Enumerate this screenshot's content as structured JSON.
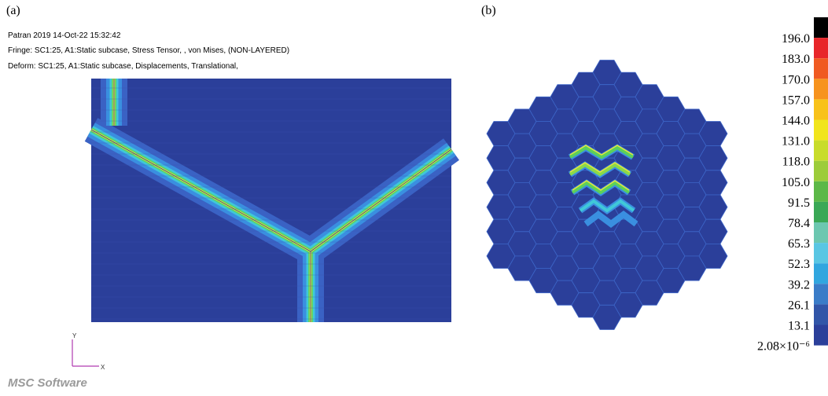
{
  "panel_a": {
    "label": "(a)",
    "header": [
      "Patran 2019 14-Oct-22 15:32:42",
      "Fringe: SC1:25, A1:Static subcase, Stress Tensor, , von Mises, (NON-LAYERED)",
      "Deform: SC1:25, A1:Static subcase, Displacements, Translational,"
    ],
    "axis_y": "Y",
    "axis_x": "X",
    "logo": "MSC Software"
  },
  "panel_b": {
    "label": "(b)"
  },
  "legend": {
    "labels": [
      "196.0",
      "183.0",
      "170.0",
      "157.0",
      "144.0",
      "131.0",
      "118.0",
      "105.0",
      "91.5",
      "78.4",
      "65.3",
      "52.3",
      "39.2",
      "26.1",
      "13.1",
      "2.08×10⁻⁶"
    ]
  }
}
